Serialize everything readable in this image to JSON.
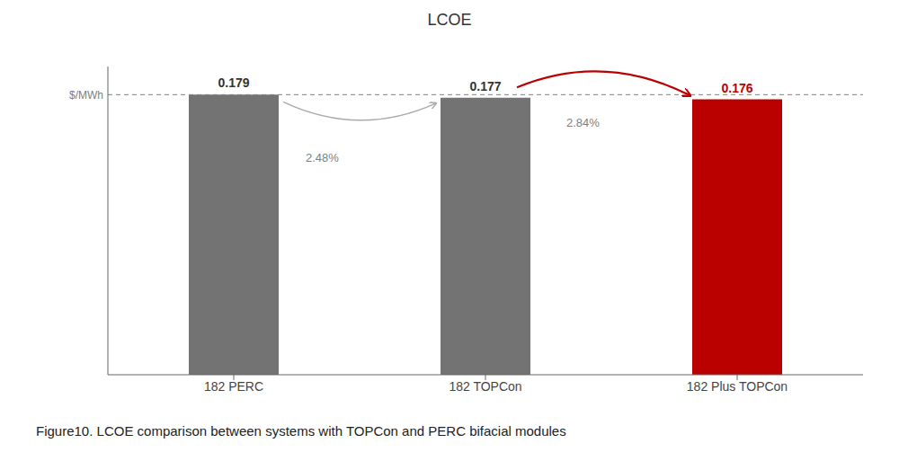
{
  "chart_data": {
    "type": "bar",
    "title": "LCOE",
    "categories": [
      "182 PERC",
      "182 TOPCon",
      "182 Plus TOPCon"
    ],
    "values": [
      0.179,
      0.177,
      0.176
    ],
    "colors": [
      "#737373",
      "#737373",
      "#bb0000"
    ],
    "ylim": [
      0,
      0.197
    ],
    "tick_labels": "x",
    "grid": false,
    "data_labels": true,
    "ylabel": "$/MWh",
    "hline": 0.179,
    "annotations": [
      "2.48%",
      "2.84%"
    ],
    "caption": "Figure10. LCOE comparison between systems with TOPCon and PERC bifacial modules"
  }
}
